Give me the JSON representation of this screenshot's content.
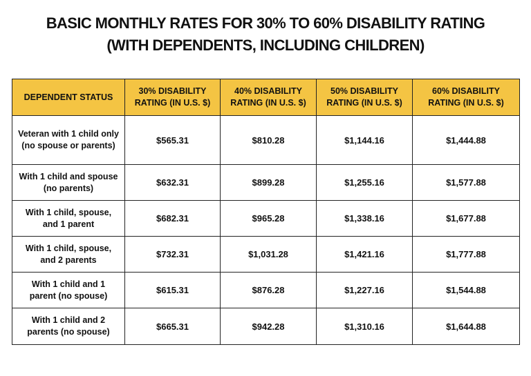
{
  "header": {
    "title_lines": [
      "BASIC MONTHLY RATES FOR 30% TO 60% DISABILITY RATING",
      "(WITH DEPENDENTS, INCLUDING CHILDREN)"
    ]
  },
  "table": {
    "columns": [
      "DEPENDENT STATUS",
      "30% DISABILITY RATING (IN U.S. $)",
      "40% DISABILITY RATING (IN U.S. $)",
      "50% DISABILITY RATING (IN U.S. $)",
      "60% DISABILITY RATING (IN U.S. $)"
    ],
    "rows": [
      [
        "Veteran with 1 child only (no spouse or parents)",
        "$565.31",
        "$810.28",
        "$1,144.16",
        "$1,444.88"
      ],
      [
        "With 1 child and spouse (no parents)",
        "$632.31",
        "$899.28",
        "$1,255.16",
        "$1,577.88"
      ],
      [
        "With 1 child, spouse, and 1 parent",
        "$682.31",
        "$965.28",
        "$1,338.16",
        "$1,677.88"
      ],
      [
        "With 1 child, spouse, and 2 parents",
        "$732.31",
        "$1,031.28",
        "$1,421.16",
        "$1,777.88"
      ],
      [
        "With 1 child and 1 parent (no spouse)",
        "$615.31",
        "$876.28",
        "$1,227.16",
        "$1,544.88"
      ],
      [
        "With 1 child and 2 parents (no spouse)",
        "$665.31",
        "$942.28",
        "$1,310.16",
        "$1,644.88"
      ]
    ]
  }
}
